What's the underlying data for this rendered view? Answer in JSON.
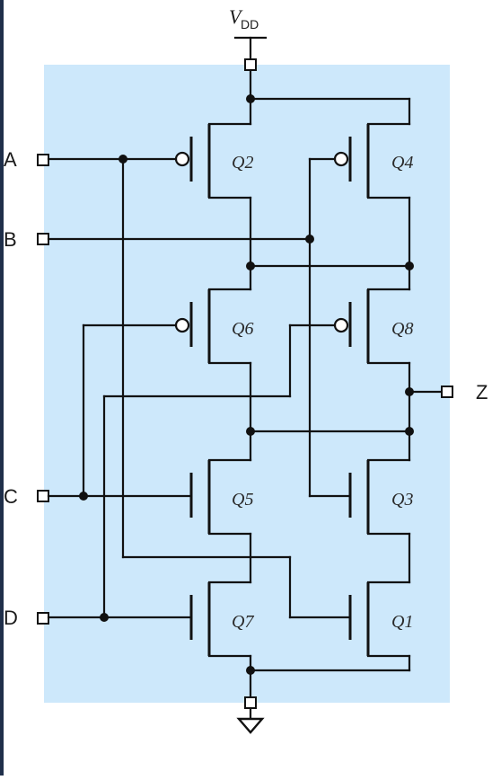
{
  "supply": {
    "name": "V",
    "subscript": "DD"
  },
  "output": {
    "label": "Z"
  },
  "inputs": [
    {
      "label": "A"
    },
    {
      "label": "B"
    },
    {
      "label": "C"
    },
    {
      "label": "D"
    }
  ],
  "transistors": [
    {
      "label": "Q2",
      "type": "pmos"
    },
    {
      "label": "Q4",
      "type": "pmos"
    },
    {
      "label": "Q6",
      "type": "pmos"
    },
    {
      "label": "Q8",
      "type": "pmos"
    },
    {
      "label": "Q5",
      "type": "nmos"
    },
    {
      "label": "Q3",
      "type": "nmos"
    },
    {
      "label": "Q7",
      "type": "nmos"
    },
    {
      "label": "Q1",
      "type": "nmos"
    }
  ],
  "colors": {
    "background": "#cde8fb",
    "wire": "#111111",
    "frame": "#1f2f4a"
  },
  "icons": {
    "ground": "ground-icon",
    "pin": "pin-pad-icon"
  }
}
